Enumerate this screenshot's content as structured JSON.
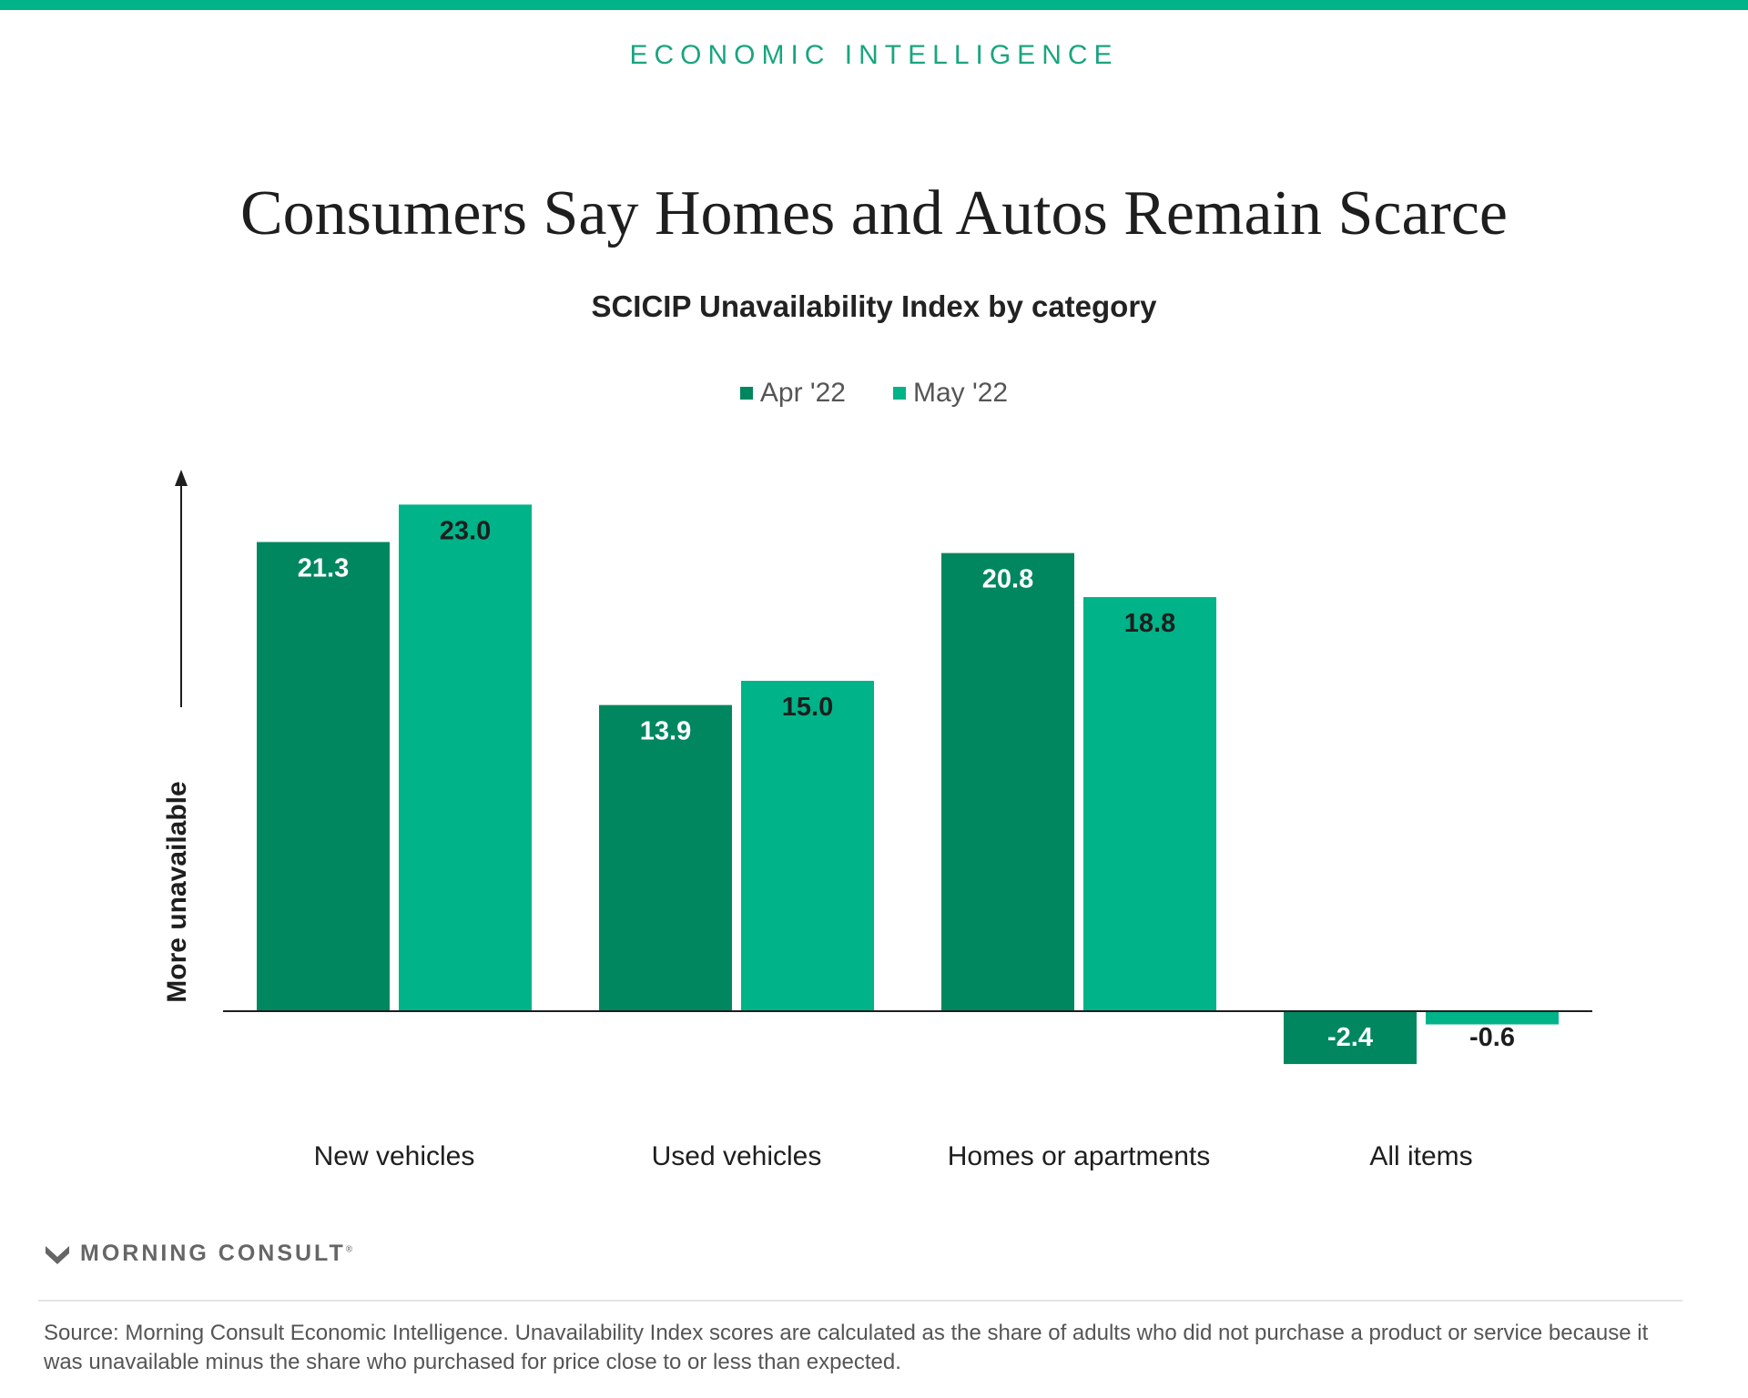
{
  "header": {
    "kicker": "ECONOMIC INTELLIGENCE"
  },
  "colors": {
    "accent": "#00b388",
    "series_dark": "#00875f",
    "series_light": "#00b388"
  },
  "chart_data": {
    "type": "bar",
    "title": "Consumers Say Homes and Autos Remain Scarce",
    "subtitle": "SCICIP Unavailability Index by category",
    "xlabel": "",
    "ylabel": "More unavailable",
    "ylim": [
      -4,
      27
    ],
    "grid": false,
    "legend": "top-center",
    "categories": [
      "New vehicles",
      "Used vehicles",
      "Homes or apartments",
      "All items"
    ],
    "series": [
      {
        "name": "Apr '22",
        "color": "#00875f",
        "values": [
          21.3,
          13.9,
          20.8,
          -2.4
        ],
        "labels": [
          "21.3",
          "13.9",
          "20.8",
          "-2.4"
        ]
      },
      {
        "name": "May '22",
        "color": "#00b388",
        "values": [
          23.0,
          15.0,
          18.8,
          -0.6
        ],
        "labels": [
          "23.0",
          "15.0",
          "18.8",
          "-0.6"
        ]
      }
    ]
  },
  "footer": {
    "logo_text": "MORNING CONSULT",
    "logo_mark": "®",
    "source": "Source: Morning Consult Economic Intelligence. Unavailability Index scores are calculated as the share of adults who did not purchase a product or service because it was unavailable minus the share who purchased for price close to or less than expected."
  }
}
